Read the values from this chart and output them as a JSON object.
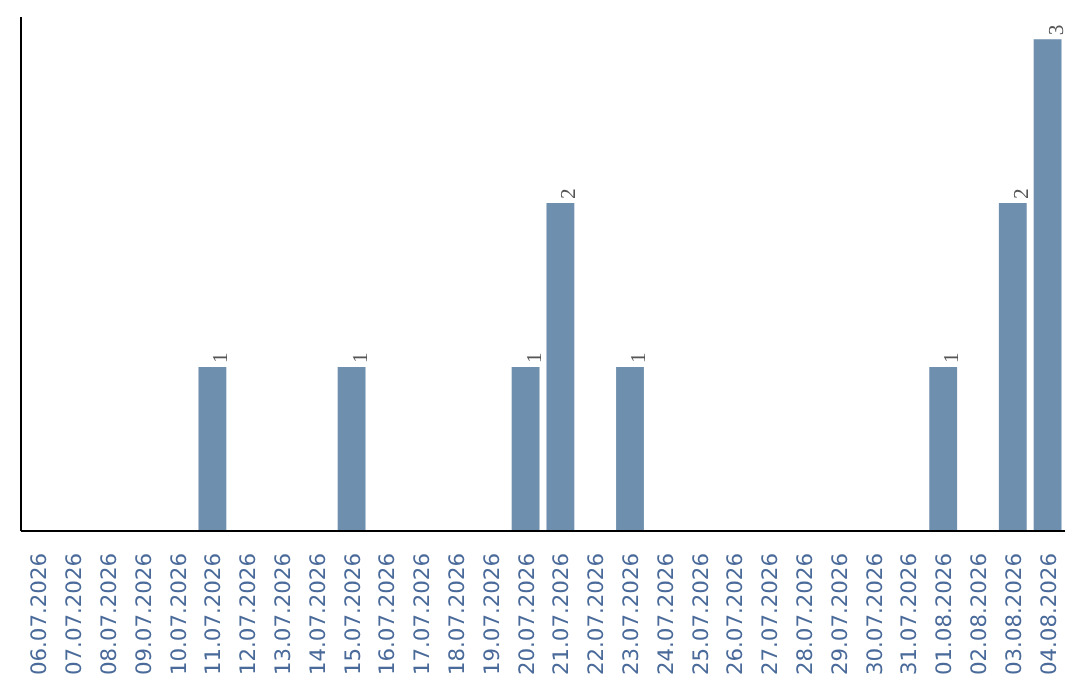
{
  "chart_data": {
    "type": "bar",
    "categories": [
      "06.07.2026",
      "07.07.2026",
      "08.07.2026",
      "09.07.2026",
      "10.07.2026",
      "11.07.2026",
      "12.07.2026",
      "13.07.2026",
      "14.07.2026",
      "15.07.2026",
      "16.07.2026",
      "17.07.2026",
      "18.07.2026",
      "19.07.2026",
      "20.07.2026",
      "21.07.2026",
      "22.07.2026",
      "23.07.2026",
      "24.07.2026",
      "25.07.2026",
      "26.07.2026",
      "27.07.2026",
      "28.07.2026",
      "29.07.2026",
      "30.07.2026",
      "31.07.2026",
      "01.08.2026",
      "02.08.2026",
      "03.08.2026",
      "04.08.2026"
    ],
    "values": [
      0,
      0,
      0,
      0,
      0,
      1,
      0,
      0,
      0,
      1,
      0,
      0,
      0,
      0,
      1,
      2,
      0,
      1,
      0,
      0,
      0,
      0,
      0,
      0,
      0,
      0,
      1,
      0,
      2,
      3
    ],
    "value_labels": [
      null,
      null,
      null,
      null,
      null,
      "1",
      null,
      null,
      null,
      "1",
      null,
      null,
      null,
      null,
      "1",
      "2",
      null,
      "1",
      null,
      null,
      null,
      null,
      null,
      null,
      null,
      null,
      "1",
      null,
      "2",
      "3"
    ],
    "color": "#6f8fae",
    "grid": false,
    "tick_labels": "x"
  }
}
